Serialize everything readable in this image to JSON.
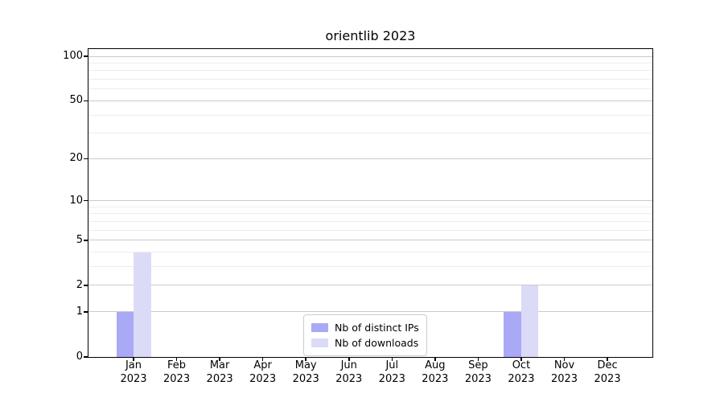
{
  "chart_data": {
    "type": "bar",
    "title": "orientlib 2023",
    "year_label": "2023",
    "categories": [
      "Jan",
      "Feb",
      "Mar",
      "Apr",
      "May",
      "Jun",
      "Jul",
      "Aug",
      "Sep",
      "Oct",
      "Nov",
      "Dec"
    ],
    "series": [
      {
        "name": "Nb of distinct IPs",
        "color": "#a9a9f5",
        "values": [
          1,
          0,
          0,
          0,
          0,
          0,
          0,
          0,
          0,
          1,
          0,
          0
        ]
      },
      {
        "name": "Nb of downloads",
        "color": "#dbdbf8",
        "values": [
          4,
          0,
          0,
          0,
          0,
          0,
          0,
          0,
          0,
          2,
          0,
          0
        ]
      }
    ],
    "xlabel": "",
    "ylabel": "",
    "yscale": "log1p",
    "ylim": [
      0,
      112
    ],
    "yticks": [
      0,
      1,
      2,
      5,
      10,
      20,
      50,
      100
    ],
    "minor_yticks": [
      3,
      4,
      6,
      7,
      8,
      9,
      30,
      40,
      60,
      70,
      80,
      90
    ],
    "grid": true,
    "legend_position": "lower center"
  },
  "colors": {
    "background": "#ffffff",
    "spine": "#000000",
    "text": "#000000",
    "major_grid": "#cbcbcb",
    "minor_grid": "#ededed",
    "legend_border": "#cccccc"
  }
}
